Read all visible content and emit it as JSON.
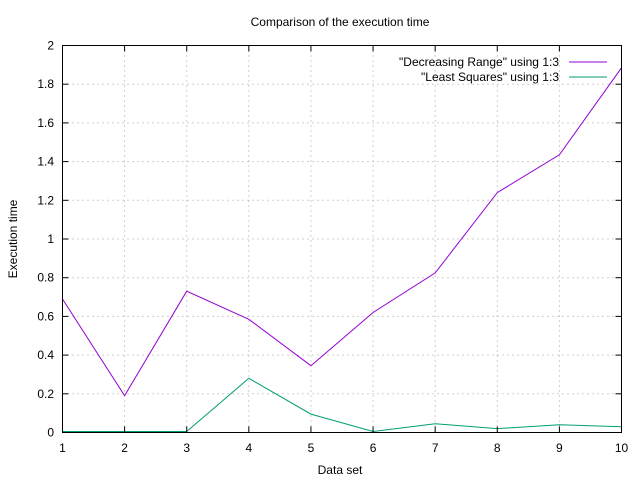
{
  "chart_data": {
    "type": "line",
    "title": "Comparison of the execution time",
    "xlabel": "Data set",
    "ylabel": "Execution time",
    "xlim": [
      1,
      10
    ],
    "ylim": [
      0,
      2
    ],
    "x_ticks": [
      1,
      2,
      3,
      4,
      5,
      6,
      7,
      8,
      9,
      10
    ],
    "y_ticks": [
      "0",
      "0.2",
      "0.4",
      "0.6",
      "0.8",
      "1",
      "1.2",
      "1.4",
      "1.6",
      "1.8",
      "2"
    ],
    "grid": true,
    "legend_position": "top-right",
    "x": [
      1,
      2,
      3,
      4,
      5,
      6,
      7,
      8,
      9,
      10
    ],
    "series": [
      {
        "name": "\"Decreasing Range\" using 1:3",
        "color": "#9400d3",
        "values": [
          0.69,
          0.19,
          0.73,
          0.585,
          0.345,
          0.62,
          0.825,
          1.24,
          1.435,
          1.885
        ]
      },
      {
        "name": "\"Least Squares\" using 1:3",
        "color": "#009e73",
        "values": [
          0.005,
          0.005,
          0.005,
          0.28,
          0.095,
          0.005,
          0.045,
          0.02,
          0.04,
          0.03
        ]
      }
    ]
  }
}
